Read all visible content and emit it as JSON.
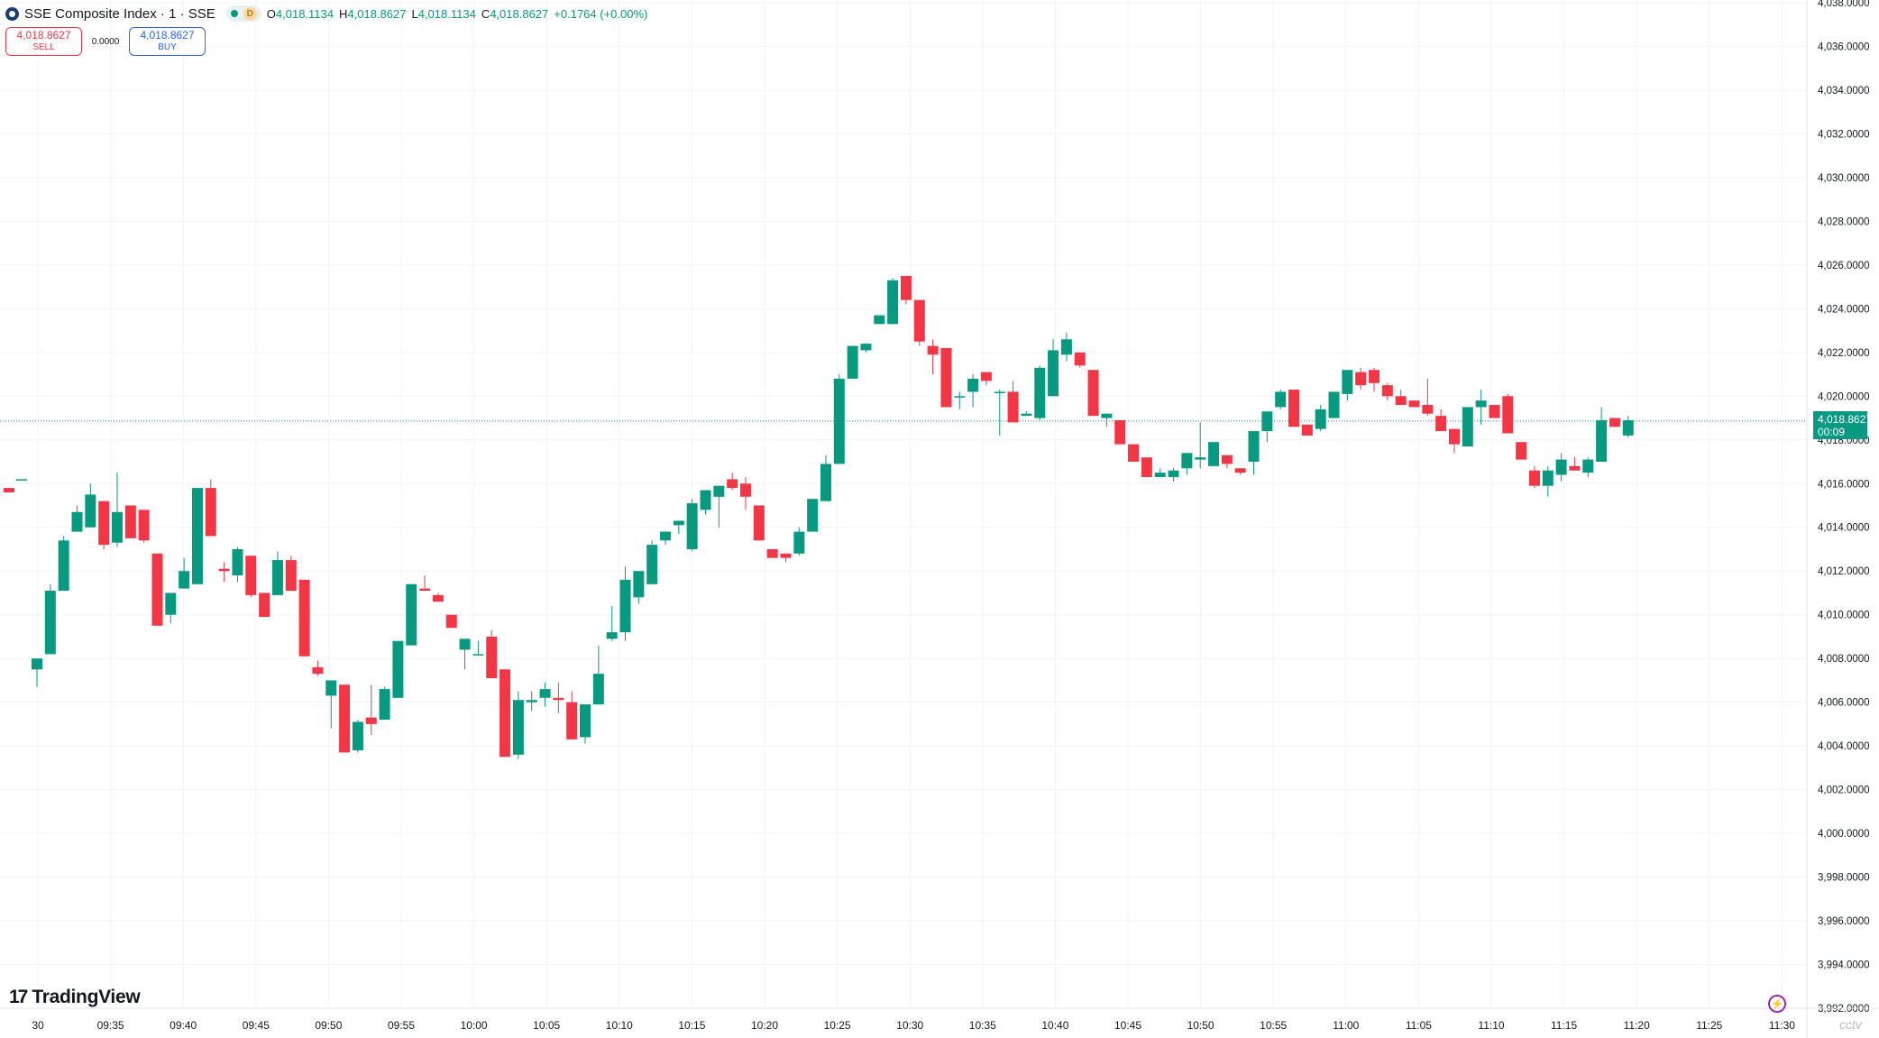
{
  "header": {
    "title": "SSE Composite Index · 1 · SSE",
    "status_letter": "D",
    "o_label": "O",
    "o_value": "4,018.1134",
    "h_label": "H",
    "h_value": "4,018.8627",
    "l_label": "L",
    "l_value": "4,018.1134",
    "c_label": "C",
    "c_value": "4,018.8627",
    "change": "+0.1764 (+0.00%)"
  },
  "trade": {
    "sell_price": "4,018.8627",
    "sell_label": "SELL",
    "spread": "0.0000",
    "buy_price": "4,018.8627",
    "buy_label": "BUY"
  },
  "last_price": {
    "value": "4,018.8627",
    "countdown": "00:09"
  },
  "branding": {
    "logo_text": "TradingView",
    "watermark": "cctv"
  },
  "icons": [
    "symbol-logo-icon",
    "market-status-icon",
    "tradingview-logo-icon",
    "bolt-icon"
  ],
  "colors": {
    "up": "#089981",
    "down": "#f23645",
    "grid": "#f0f3fa",
    "axis_text": "#131722"
  },
  "chart_data": {
    "type": "candlestick",
    "title": "SSE Composite Index · 1 · SSE",
    "x_ticks": [
      "30",
      "09:35",
      "09:40",
      "09:45",
      "09:50",
      "09:55",
      "10:00",
      "10:05",
      "10:10",
      "10:15",
      "10:20",
      "10:25",
      "10:30",
      "10:35",
      "10:40",
      "10:45",
      "10:50",
      "10:55",
      "11:00",
      "11:05",
      "11:10",
      "11:15",
      "11:20",
      "11:25",
      "11:30"
    ],
    "y_ticks": [
      "3,992.0000",
      "3,994.0000",
      "3,996.0000",
      "3,998.0000",
      "4,000.0000",
      "4,002.0000",
      "4,004.0000",
      "4,006.0000",
      "4,008.0000",
      "4,010.0000",
      "4,012.0000",
      "4,014.0000",
      "4,016.0000",
      "4,018.0000",
      "4,020.0000",
      "4,022.0000",
      "4,024.0000",
      "4,026.0000",
      "4,028.0000",
      "4,030.0000",
      "4,032.0000",
      "4,034.0000",
      "4,036.0000",
      "4,038.0000"
    ],
    "ylim": [
      3992,
      4038
    ],
    "grid": true,
    "last_price": 4018.8627,
    "candles": [
      [
        4015.8,
        4015.8,
        4015.6,
        4015.6
      ],
      [
        4016.2,
        4016.2,
        4016.2,
        4016.2
      ],
      [
        4007.5,
        4008.0,
        4006.7,
        4008.0
      ],
      [
        4008.2,
        4011.4,
        4008.2,
        4011.1
      ],
      [
        4011.1,
        4013.6,
        4011.1,
        4013.4
      ],
      [
        4013.8,
        4015.0,
        4013.8,
        4014.7
      ],
      [
        4014.0,
        4016.0,
        4014.0,
        4015.5
      ],
      [
        4015.2,
        4015.2,
        4013.0,
        4013.2
      ],
      [
        4013.3,
        4016.5,
        4013.1,
        4014.7
      ],
      [
        4015.0,
        4015.0,
        4013.5,
        4013.5
      ],
      [
        4014.8,
        4014.8,
        4013.3,
        4013.4
      ],
      [
        4012.8,
        4012.8,
        4009.5,
        4009.5
      ],
      [
        4010.0,
        4011.0,
        4009.6,
        4011.0
      ],
      [
        4011.2,
        4012.6,
        4011.2,
        4012.0
      ],
      [
        4011.4,
        4015.8,
        4011.4,
        4015.8
      ],
      [
        4015.8,
        4016.2,
        4013.6,
        4013.6
      ],
      [
        4012.1,
        4012.4,
        4011.5,
        4012.0
      ],
      [
        4011.8,
        4013.1,
        4011.5,
        4013.0
      ],
      [
        4012.7,
        4012.7,
        4010.8,
        4010.9
      ],
      [
        4011.0,
        4011.0,
        4009.9,
        4009.9
      ],
      [
        4010.9,
        4012.9,
        4010.9,
        4012.5
      ],
      [
        4012.5,
        4012.7,
        4011.1,
        4011.1
      ],
      [
        4011.6,
        4011.6,
        4008.1,
        4008.1
      ],
      [
        4007.6,
        4007.9,
        4007.2,
        4007.3
      ],
      [
        4006.3,
        4006.9,
        4004.8,
        4007.0
      ],
      [
        4006.8,
        4006.8,
        4003.7,
        4003.7
      ],
      [
        4003.8,
        4005.2,
        4003.7,
        4005.1
      ],
      [
        4005.3,
        4006.8,
        4004.5,
        4005.0
      ],
      [
        4005.2,
        4006.7,
        4005.2,
        4006.6
      ],
      [
        4006.2,
        4008.8,
        4006.2,
        4008.8
      ],
      [
        4008.6,
        4011.4,
        4008.6,
        4011.4
      ],
      [
        4011.2,
        4011.8,
        4011.2,
        4011.1
      ],
      [
        4010.9,
        4011.0,
        4010.6,
        4010.6
      ],
      [
        4010.0,
        4010.0,
        4009.4,
        4009.4
      ],
      [
        4008.4,
        4008.8,
        4007.5,
        4008.9
      ],
      [
        4008.2,
        4008.8,
        4008.2,
        4008.2
      ],
      [
        4009.0,
        4009.3,
        4007.1,
        4007.1
      ],
      [
        4007.5,
        4007.5,
        4003.5,
        4003.5
      ],
      [
        4003.6,
        4006.5,
        4003.4,
        4006.1
      ],
      [
        4006.0,
        4006.5,
        4005.6,
        4006.1
      ],
      [
        4006.2,
        4006.9,
        4005.8,
        4006.6
      ],
      [
        4006.2,
        4006.9,
        4005.5,
        4006.1
      ],
      [
        4006.0,
        4006.5,
        4004.3,
        4004.3
      ],
      [
        4004.4,
        4005.9,
        4004.1,
        4005.9
      ],
      [
        4005.9,
        4008.6,
        4005.9,
        4007.3
      ],
      [
        4008.9,
        4010.4,
        4008.8,
        4009.2
      ],
      [
        4009.2,
        4012.2,
        4008.8,
        4011.6
      ],
      [
        4010.8,
        4011.9,
        4010.5,
        4012.0
      ],
      [
        4011.4,
        4013.4,
        4011.4,
        4013.2
      ],
      [
        4013.4,
        4013.8,
        4013.2,
        4013.8
      ],
      [
        4014.1,
        4014.2,
        4013.7,
        4014.3
      ],
      [
        4013.0,
        4015.3,
        4012.9,
        4015.1
      ],
      [
        4014.8,
        4015.7,
        4014.6,
        4015.7
      ],
      [
        4015.4,
        4015.9,
        4014.0,
        4015.9
      ],
      [
        4016.2,
        4016.5,
        4015.7,
        4015.8
      ],
      [
        4016.0,
        4016.3,
        4014.8,
        4015.4
      ],
      [
        4015.0,
        4015.0,
        4013.4,
        4013.4
      ],
      [
        4013.0,
        4013.0,
        4012.7,
        4012.6
      ],
      [
        4012.8,
        4012.8,
        4012.4,
        4012.6
      ],
      [
        4012.8,
        4014.0,
        4012.7,
        4013.8
      ],
      [
        4013.8,
        4015.3,
        4013.8,
        4015.3
      ],
      [
        4015.2,
        4017.3,
        4015.2,
        4016.9
      ],
      [
        4016.9,
        4021.0,
        4016.9,
        4020.8
      ],
      [
        4020.8,
        4022.3,
        4020.8,
        4022.3
      ],
      [
        4022.1,
        4022.4,
        4022.0,
        4022.4
      ],
      [
        4023.3,
        4023.7,
        4023.3,
        4023.7
      ],
      [
        4023.3,
        4025.4,
        4023.3,
        4025.3
      ],
      [
        4025.5,
        4025.5,
        4024.2,
        4024.4
      ],
      [
        4024.4,
        4024.4,
        4022.3,
        4022.5
      ],
      [
        4022.3,
        4022.6,
        4021.0,
        4021.9
      ],
      [
        4022.2,
        4022.2,
        4019.5,
        4019.5
      ],
      [
        4020.0,
        4020.2,
        4019.4,
        4020.0
      ],
      [
        4020.2,
        4021.0,
        4019.5,
        4020.8
      ],
      [
        4021.1,
        4021.1,
        4020.5,
        4020.7
      ],
      [
        4020.2,
        4020.3,
        4018.2,
        4020.2
      ],
      [
        4020.2,
        4020.7,
        4018.8,
        4018.8
      ],
      [
        4019.1,
        4019.3,
        4019.1,
        4019.2
      ],
      [
        4019.0,
        4021.4,
        4018.9,
        4021.3
      ],
      [
        4020.0,
        4022.6,
        4020.0,
        4022.1
      ],
      [
        4021.9,
        4022.9,
        4021.6,
        4022.6
      ],
      [
        4022.0,
        4022.0,
        4021.3,
        4021.4
      ],
      [
        4021.2,
        4021.2,
        4019.1,
        4019.1
      ],
      [
        4019.0,
        4019.0,
        4018.6,
        4019.2
      ],
      [
        4018.9,
        4018.9,
        4017.8,
        4017.8
      ],
      [
        4017.8,
        4017.8,
        4017.0,
        4017.0
      ],
      [
        4017.2,
        4017.2,
        4016.3,
        4016.3
      ],
      [
        4016.3,
        4016.7,
        4016.4,
        4016.5
      ],
      [
        4016.3,
        4016.7,
        4016.1,
        4016.6
      ],
      [
        4016.7,
        4017.4,
        4016.4,
        4017.4
      ],
      [
        4017.1,
        4018.8,
        4016.7,
        4017.2
      ],
      [
        4016.8,
        4017.8,
        4016.8,
        4017.9
      ],
      [
        4017.3,
        4017.3,
        4016.7,
        4016.9
      ],
      [
        4016.7,
        4016.7,
        4016.4,
        4016.5
      ],
      [
        4017.0,
        4018.3,
        4016.4,
        4018.4
      ],
      [
        4018.4,
        4019.3,
        4017.9,
        4019.3
      ],
      [
        4019.5,
        4020.3,
        4019.4,
        4020.2
      ],
      [
        4020.3,
        4020.3,
        4018.6,
        4018.6
      ],
      [
        4018.7,
        4018.7,
        4018.2,
        4018.2
      ],
      [
        4018.5,
        4019.6,
        4018.4,
        4019.4
      ],
      [
        4019.0,
        4020.0,
        4019.0,
        4020.2
      ],
      [
        4020.1,
        4021.1,
        4019.8,
        4021.2
      ],
      [
        4021.1,
        4021.3,
        4020.3,
        4020.5
      ],
      [
        4021.2,
        4021.3,
        4020.2,
        4020.6
      ],
      [
        4020.5,
        4020.6,
        4019.8,
        4020.0
      ],
      [
        4020.0,
        4020.3,
        4019.6,
        4019.6
      ],
      [
        4019.8,
        4019.8,
        4019.5,
        4019.5
      ],
      [
        4019.6,
        4020.8,
        4019.1,
        4019.2
      ],
      [
        4019.1,
        4019.4,
        4018.4,
        4018.4
      ],
      [
        4018.5,
        4018.5,
        4017.4,
        4017.8
      ],
      [
        4017.7,
        4019.5,
        4017.7,
        4019.5
      ],
      [
        4019.5,
        4020.3,
        4018.7,
        4019.8
      ],
      [
        4019.6,
        4019.6,
        4019.0,
        4019.0
      ],
      [
        4020.0,
        4020.1,
        4018.3,
        4018.3
      ],
      [
        4017.9,
        4017.9,
        4017.1,
        4017.1
      ],
      [
        4016.6,
        4016.8,
        4015.8,
        4015.9
      ],
      [
        4015.9,
        4016.8,
        4015.4,
        4016.6
      ],
      [
        4016.4,
        4017.4,
        4016.1,
        4017.1
      ],
      [
        4016.8,
        4017.2,
        4016.6,
        4016.6
      ],
      [
        4016.5,
        4017.2,
        4016.3,
        4017.1
      ],
      [
        4017.0,
        4019.5,
        4017.0,
        4018.9
      ],
      [
        4019.0,
        4019.0,
        4018.6,
        4018.6
      ],
      [
        4018.2,
        4019.1,
        4018.1,
        4018.9
      ]
    ]
  }
}
